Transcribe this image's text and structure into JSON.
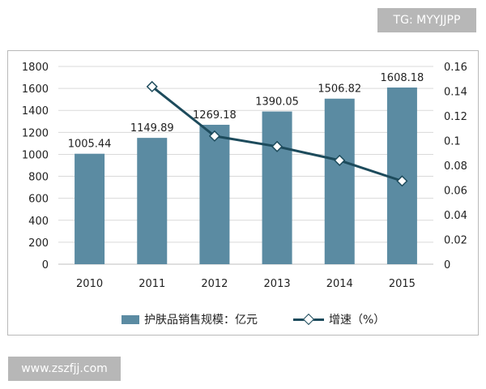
{
  "watermarks": {
    "top_right": "TG: MYYJJPP",
    "bottom_left": "www.zszfjj.com"
  },
  "chart_data": {
    "type": "bar",
    "categories": [
      "2010",
      "2011",
      "2012",
      "2013",
      "2014",
      "2015"
    ],
    "series": [
      {
        "name": "护肤品销售规模：亿元",
        "type": "bar",
        "axis": "left",
        "color": "#5b8ba2",
        "values": [
          1005.44,
          1149.89,
          1269.18,
          1390.05,
          1506.82,
          1608.18
        ],
        "data_labels": [
          "1005.44",
          "1149.89",
          "1269.18",
          "1390.05",
          "1506.82",
          "1608.18"
        ]
      },
      {
        "name": "增速（%）",
        "type": "line",
        "axis": "right",
        "color": "#1d4b5c",
        "marker": "diamond",
        "values": [
          null,
          0.1437,
          0.1037,
          0.0952,
          0.084,
          0.0673
        ]
      }
    ],
    "y_left": {
      "min": 0,
      "max": 1800,
      "ticks": [
        "0",
        "200",
        "400",
        "600",
        "800",
        "1000",
        "1200",
        "1400",
        "1600",
        "1800"
      ]
    },
    "y_right": {
      "min": 0,
      "max": 0.16,
      "ticks": [
        "0",
        "0.02",
        "0.04",
        "0.06",
        "0.08",
        "0.1",
        "0.12",
        "0.14",
        "0.16"
      ]
    },
    "grid": true,
    "legend_position": "bottom"
  }
}
